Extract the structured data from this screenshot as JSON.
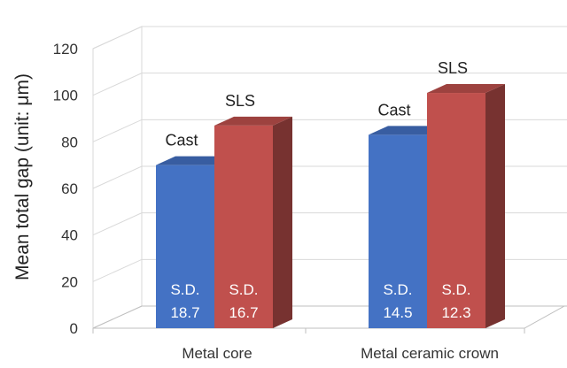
{
  "chart_data": {
    "type": "bar",
    "title": "",
    "xlabel": "",
    "ylabel": "Mean total gap (unit: μm)",
    "ylim": [
      0,
      120
    ],
    "yticks": [
      0,
      20,
      40,
      60,
      80,
      100,
      120
    ],
    "categories": [
      "Metal core",
      "Metal ceramic crown"
    ],
    "series": [
      {
        "name": "Cast",
        "values": [
          70,
          83
        ],
        "sd_labels": [
          "S.D.\n18.7",
          "S.D.\n14.5"
        ],
        "color": "#4472c4"
      },
      {
        "name": "SLS",
        "values": [
          87,
          101
        ],
        "sd_labels": [
          "S.D.\n16.7",
          "S.D.\n12.3"
        ],
        "color": "#c0504d"
      }
    ],
    "grid": true,
    "style": "3d-clustered-column"
  }
}
